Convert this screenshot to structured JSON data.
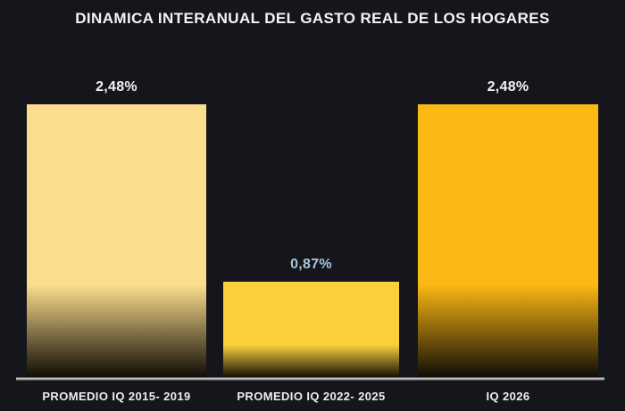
{
  "title": "DINAMICA INTERANUAL DEL GASTO REAL DE LOS HOGARES",
  "chart_data": {
    "type": "bar",
    "title": "DINAMICA INTERANUAL DEL GASTO REAL DE LOS HOGARES",
    "categories": [
      "PROMEDIO IQ 2015- 2019",
      "PROMEDIO IQ 2022- 2025",
      "IQ 2026"
    ],
    "values": [
      2.48,
      0.87,
      2.48
    ],
    "value_labels": [
      "2,48%",
      "0,87%",
      "2,48%"
    ],
    "unit": "percent",
    "ylim": [
      0,
      2.48
    ],
    "grid": false,
    "legend": false,
    "bar_colors": [
      "#FBDD8D",
      "#F9CF3B",
      "#FCB813"
    ],
    "value_label_colors": [
      "#F2F2F2",
      "#A9C5DA",
      "#F2F2F2"
    ],
    "bar_fade_bottom_color": "#0e0b05"
  },
  "colors": {
    "background": "#15161b",
    "title_text": "#F4F4F4",
    "category_text": "#EEEEEE",
    "axis_line": "#B5B5B5"
  }
}
